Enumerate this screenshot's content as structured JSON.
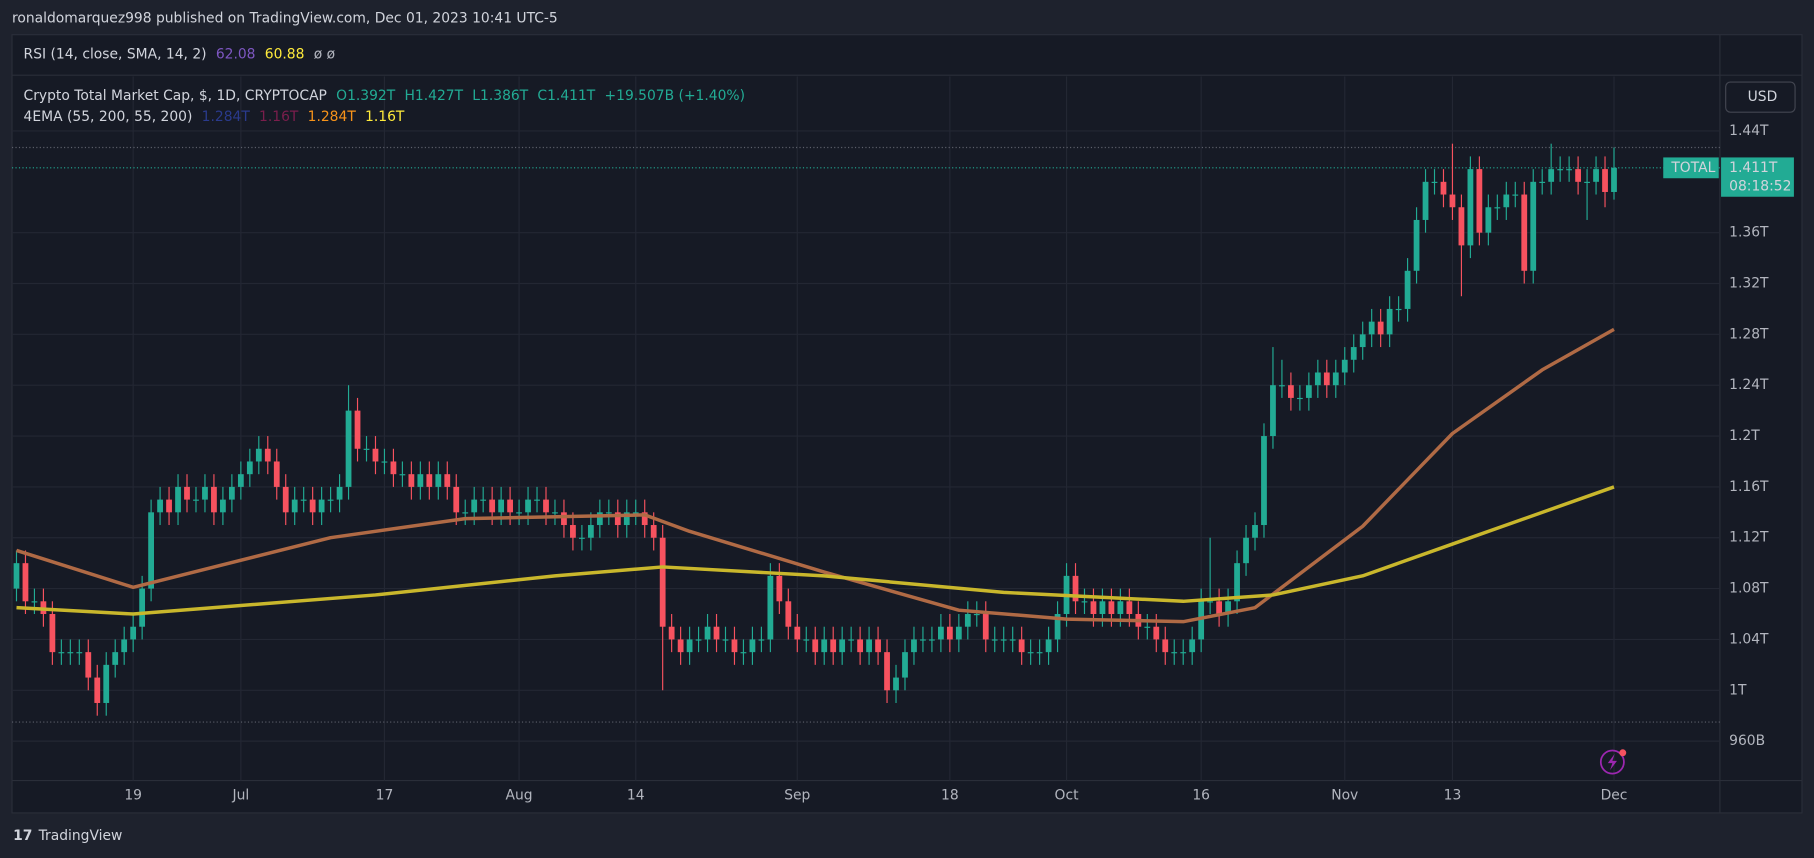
{
  "chart_data": {
    "type": "candlestick",
    "published": "ronaldomarquez998 published on TradingView.com, Dec 01, 2023 10:41 UTC-5",
    "rsi_legend": {
      "title": "RSI (14, close, SMA, 14, 2)",
      "value1": "62.08",
      "value2": "60.88",
      "extra": "ø ø"
    },
    "legend": {
      "title": "Crypto Total Market Cap, $, 1D, CRYPTOCAP",
      "open": "O1.392T",
      "high": "H1.427T",
      "low": "L1.386T",
      "close": "C1.411T",
      "change": "+19.507B (+1.40%)"
    },
    "ema_legend": {
      "title": "4EMA (55, 200, 55, 200)",
      "values": [
        "1.284T",
        "1.16T",
        "1.284T",
        "1.16T"
      ],
      "colors": [
        "#2a3a8c",
        "#7a1e4c",
        "#f7931a",
        "#ffeb3b"
      ]
    },
    "currency": "USD",
    "price_label": {
      "symbol": "TOTAL",
      "value": "1.411T",
      "countdown": "08:18:52",
      "color": "#22ab94"
    },
    "brand": "TradingView",
    "color_up": "#22ab94",
    "color_down": "#f7525f",
    "open": [
      1.08,
      1.1,
      1.07,
      1.07,
      1.06,
      1.03,
      1.03,
      1.03,
      1.03,
      1.01,
      0.99,
      1.02,
      1.03,
      1.04,
      1.05,
      1.08,
      1.14,
      1.15,
      1.14,
      1.16,
      1.15,
      1.15,
      1.16,
      1.14,
      1.15,
      1.16,
      1.17,
      1.18,
      1.19,
      1.18,
      1.16,
      1.14,
      1.15,
      1.15,
      1.14,
      1.15,
      1.15,
      1.16,
      1.22,
      1.19,
      1.19,
      1.18,
      1.18,
      1.17,
      1.17,
      1.16,
      1.17,
      1.16,
      1.17,
      1.16,
      1.14,
      1.14,
      1.15,
      1.15,
      1.14,
      1.15,
      1.14,
      1.14,
      1.15,
      1.15,
      1.14,
      1.14,
      1.13,
      1.12,
      1.12,
      1.13,
      1.14,
      1.14,
      1.13,
      1.14,
      1.14,
      1.13,
      1.12,
      1.05,
      1.04,
      1.03,
      1.04,
      1.04,
      1.05,
      1.04,
      1.04,
      1.03,
      1.03,
      1.04,
      1.04,
      1.09,
      1.07,
      1.05,
      1.04,
      1.04,
      1.03,
      1.04,
      1.03,
      1.04,
      1.04,
      1.03,
      1.04,
      1.03,
      1.0,
      1.01,
      1.03,
      1.04,
      1.04,
      1.04,
      1.05,
      1.04,
      1.05,
      1.06,
      1.06,
      1.04,
      1.04,
      1.04,
      1.04,
      1.03,
      1.03,
      1.03,
      1.04,
      1.06,
      1.09,
      1.07,
      1.07,
      1.06,
      1.07,
      1.06,
      1.07,
      1.06,
      1.05,
      1.05,
      1.04,
      1.03,
      1.03,
      1.03,
      1.04,
      1.07,
      1.07,
      1.06,
      1.07,
      1.1,
      1.12,
      1.13,
      1.2,
      1.24,
      1.24,
      1.23,
      1.23,
      1.24,
      1.25,
      1.24,
      1.25,
      1.26,
      1.27,
      1.28,
      1.29,
      1.28,
      1.3,
      1.3,
      1.33,
      1.37,
      1.4,
      1.4,
      1.39,
      1.38,
      1.35,
      1.41,
      1.36,
      1.38,
      1.38,
      1.39,
      1.39,
      1.33,
      1.4,
      1.4,
      1.41,
      1.41,
      1.41,
      1.4,
      1.4,
      1.41,
      1.392
    ],
    "high": [
      1.11,
      1.11,
      1.08,
      1.08,
      1.07,
      1.04,
      1.04,
      1.04,
      1.04,
      1.02,
      1.03,
      1.04,
      1.05,
      1.06,
      1.09,
      1.15,
      1.16,
      1.16,
      1.17,
      1.17,
      1.16,
      1.17,
      1.17,
      1.16,
      1.17,
      1.18,
      1.19,
      1.2,
      1.2,
      1.19,
      1.17,
      1.16,
      1.16,
      1.16,
      1.16,
      1.16,
      1.17,
      1.24,
      1.23,
      1.2,
      1.2,
      1.19,
      1.19,
      1.18,
      1.18,
      1.18,
      1.18,
      1.18,
      1.18,
      1.17,
      1.15,
      1.16,
      1.16,
      1.16,
      1.16,
      1.16,
      1.15,
      1.16,
      1.16,
      1.16,
      1.15,
      1.15,
      1.14,
      1.13,
      1.14,
      1.15,
      1.15,
      1.15,
      1.15,
      1.15,
      1.15,
      1.14,
      1.13,
      1.06,
      1.05,
      1.05,
      1.05,
      1.06,
      1.06,
      1.05,
      1.05,
      1.04,
      1.05,
      1.05,
      1.1,
      1.1,
      1.08,
      1.06,
      1.05,
      1.05,
      1.05,
      1.05,
      1.05,
      1.05,
      1.05,
      1.05,
      1.05,
      1.04,
      1.02,
      1.04,
      1.05,
      1.05,
      1.05,
      1.06,
      1.06,
      1.06,
      1.07,
      1.07,
      1.07,
      1.05,
      1.05,
      1.05,
      1.05,
      1.04,
      1.04,
      1.05,
      1.07,
      1.1,
      1.1,
      1.08,
      1.08,
      1.08,
      1.08,
      1.08,
      1.08,
      1.07,
      1.06,
      1.06,
      1.05,
      1.04,
      1.04,
      1.05,
      1.08,
      1.12,
      1.08,
      1.08,
      1.11,
      1.13,
      1.14,
      1.21,
      1.27,
      1.26,
      1.25,
      1.24,
      1.25,
      1.26,
      1.26,
      1.26,
      1.27,
      1.28,
      1.29,
      1.3,
      1.3,
      1.31,
      1.31,
      1.34,
      1.38,
      1.41,
      1.41,
      1.41,
      1.43,
      1.39,
      1.42,
      1.42,
      1.39,
      1.39,
      1.4,
      1.4,
      1.4,
      1.41,
      1.41,
      1.43,
      1.42,
      1.42,
      1.42,
      1.41,
      1.42,
      1.42,
      1.427
    ],
    "low": [
      1.07,
      1.06,
      1.06,
      1.05,
      1.02,
      1.02,
      1.02,
      1.02,
      1.0,
      0.98,
      0.98,
      1.01,
      1.02,
      1.03,
      1.04,
      1.07,
      1.13,
      1.13,
      1.13,
      1.14,
      1.14,
      1.14,
      1.13,
      1.13,
      1.14,
      1.15,
      1.16,
      1.17,
      1.17,
      1.15,
      1.13,
      1.13,
      1.14,
      1.13,
      1.13,
      1.14,
      1.14,
      1.15,
      1.18,
      1.18,
      1.17,
      1.17,
      1.16,
      1.16,
      1.15,
      1.15,
      1.15,
      1.15,
      1.15,
      1.13,
      1.13,
      1.13,
      1.14,
      1.13,
      1.13,
      1.13,
      1.13,
      1.13,
      1.14,
      1.13,
      1.13,
      1.12,
      1.11,
      1.11,
      1.11,
      1.12,
      1.13,
      1.12,
      1.12,
      1.13,
      1.12,
      1.11,
      1.0,
      1.03,
      1.02,
      1.02,
      1.03,
      1.03,
      1.03,
      1.03,
      1.02,
      1.02,
      1.02,
      1.03,
      1.03,
      1.06,
      1.04,
      1.03,
      1.03,
      1.02,
      1.02,
      1.02,
      1.02,
      1.03,
      1.02,
      1.02,
      1.02,
      0.99,
      0.99,
      1.0,
      1.02,
      1.03,
      1.03,
      1.03,
      1.03,
      1.03,
      1.04,
      1.05,
      1.03,
      1.03,
      1.03,
      1.03,
      1.02,
      1.02,
      1.02,
      1.02,
      1.03,
      1.05,
      1.06,
      1.06,
      1.05,
      1.05,
      1.05,
      1.05,
      1.05,
      1.04,
      1.04,
      1.03,
      1.02,
      1.02,
      1.02,
      1.02,
      1.03,
      1.06,
      1.05,
      1.05,
      1.06,
      1.09,
      1.11,
      1.12,
      1.19,
      1.23,
      1.22,
      1.22,
      1.22,
      1.23,
      1.23,
      1.23,
      1.24,
      1.25,
      1.26,
      1.27,
      1.27,
      1.27,
      1.29,
      1.29,
      1.32,
      1.36,
      1.39,
      1.38,
      1.37,
      1.31,
      1.34,
      1.35,
      1.35,
      1.37,
      1.37,
      1.38,
      1.32,
      1.32,
      1.39,
      1.39,
      1.4,
      1.4,
      1.39,
      1.37,
      1.39,
      1.38,
      1.386
    ],
    "close": [
      1.1,
      1.07,
      1.07,
      1.06,
      1.03,
      1.03,
      1.03,
      1.03,
      1.01,
      0.99,
      1.02,
      1.03,
      1.04,
      1.05,
      1.08,
      1.14,
      1.15,
      1.14,
      1.16,
      1.15,
      1.15,
      1.16,
      1.14,
      1.15,
      1.16,
      1.17,
      1.18,
      1.19,
      1.18,
      1.16,
      1.14,
      1.15,
      1.15,
      1.14,
      1.15,
      1.15,
      1.16,
      1.22,
      1.19,
      1.19,
      1.18,
      1.18,
      1.17,
      1.17,
      1.16,
      1.17,
      1.16,
      1.17,
      1.16,
      1.14,
      1.14,
      1.15,
      1.15,
      1.14,
      1.15,
      1.14,
      1.14,
      1.15,
      1.15,
      1.14,
      1.14,
      1.13,
      1.12,
      1.12,
      1.13,
      1.14,
      1.14,
      1.13,
      1.14,
      1.14,
      1.13,
      1.12,
      1.05,
      1.04,
      1.03,
      1.04,
      1.04,
      1.05,
      1.04,
      1.04,
      1.03,
      1.03,
      1.04,
      1.04,
      1.09,
      1.07,
      1.05,
      1.04,
      1.04,
      1.03,
      1.04,
      1.03,
      1.04,
      1.04,
      1.03,
      1.04,
      1.03,
      1.0,
      1.01,
      1.03,
      1.04,
      1.04,
      1.04,
      1.05,
      1.04,
      1.05,
      1.06,
      1.06,
      1.04,
      1.04,
      1.04,
      1.04,
      1.03,
      1.03,
      1.03,
      1.04,
      1.06,
      1.09,
      1.07,
      1.07,
      1.06,
      1.07,
      1.06,
      1.07,
      1.06,
      1.05,
      1.05,
      1.04,
      1.03,
      1.03,
      1.03,
      1.04,
      1.07,
      1.07,
      1.06,
      1.07,
      1.1,
      1.12,
      1.13,
      1.2,
      1.24,
      1.24,
      1.23,
      1.23,
      1.24,
      1.25,
      1.24,
      1.25,
      1.26,
      1.27,
      1.28,
      1.29,
      1.28,
      1.3,
      1.3,
      1.33,
      1.37,
      1.4,
      1.4,
      1.39,
      1.38,
      1.35,
      1.41,
      1.36,
      1.38,
      1.38,
      1.39,
      1.39,
      1.33,
      1.4,
      1.4,
      1.41,
      1.41,
      1.41,
      1.4,
      1.4,
      1.41,
      1.392,
      1.411
    ],
    "lines": [
      {
        "color": "#b06a45",
        "x": [
          0,
          13,
          35,
          50,
          70,
          75,
          90,
          105,
          117,
          130,
          138,
          150,
          160,
          170,
          178
        ],
        "values": [
          1.11,
          1.081,
          1.12,
          1.135,
          1.138,
          1.125,
          1.093,
          1.063,
          1.056,
          1.054,
          1.065,
          1.129,
          1.202,
          1.252,
          1.284
        ]
      },
      {
        "color": "#c9b72c",
        "x": [
          0,
          13,
          40,
          60,
          72,
          90,
          110,
          130,
          140,
          150,
          160,
          170,
          178
        ],
        "values": [
          1.065,
          1.06,
          1.075,
          1.09,
          1.097,
          1.09,
          1.077,
          1.07,
          1.075,
          1.09,
          1.115,
          1.14,
          1.16
        ]
      }
    ],
    "price_lines": [
      1.427,
      0.975
    ],
    "xlim": [
      -0.5,
      189.8
    ],
    "xticks": [
      {
        "value": 13,
        "label": "19"
      },
      {
        "value": 25,
        "label": "Jul"
      },
      {
        "value": 41,
        "label": "17"
      },
      {
        "value": 56,
        "label": "Aug"
      },
      {
        "value": 69,
        "label": "14"
      },
      {
        "value": 87,
        "label": "Sep"
      },
      {
        "value": 104,
        "label": "18"
      },
      {
        "value": 117,
        "label": "Oct"
      },
      {
        "value": 132,
        "label": "16"
      },
      {
        "value": 148,
        "label": "Nov"
      },
      {
        "value": 160,
        "label": "13"
      },
      {
        "value": 178,
        "label": "Dec"
      }
    ],
    "ylim": [
      0.929,
      1.483
    ],
    "yticks": [
      {
        "value": 1.44,
        "label": "1.44T"
      },
      {
        "value": 1.36,
        "label": "1.36T"
      },
      {
        "value": 1.32,
        "label": "1.32T"
      },
      {
        "value": 1.28,
        "label": "1.28T"
      },
      {
        "value": 1.24,
        "label": "1.24T"
      },
      {
        "value": 1.2,
        "label": "1.2T"
      },
      {
        "value": 1.16,
        "label": "1.16T"
      },
      {
        "value": 1.12,
        "label": "1.12T"
      },
      {
        "value": 1.08,
        "label": "1.08T"
      },
      {
        "value": 1.04,
        "label": "1.04T"
      },
      {
        "value": 1,
        "label": "1T"
      },
      {
        "value": 0.96,
        "label": "960B"
      }
    ],
    "grid": true
  }
}
